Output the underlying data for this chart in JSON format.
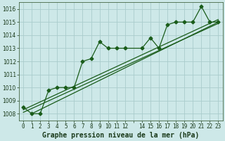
{
  "title": "Graphe pression niveau de la mer (hPa)",
  "background_color": "#cde8e8",
  "grid_color": "#b0d4d4",
  "line_color": "#1a5c1a",
  "x_values": [
    0,
    1,
    2,
    3,
    4,
    5,
    6,
    7,
    8,
    9,
    10,
    11,
    12,
    14,
    15,
    16,
    17,
    18,
    19,
    20,
    21,
    22,
    23
  ],
  "x_labels": [
    "0",
    "1",
    "2",
    "3",
    "4",
    "5",
    "6",
    "7",
    "8",
    "9",
    "101112",
    "",
    "14151617181920212223",
    "",
    "",
    "",
    "",
    "",
    "",
    "",
    "",
    "",
    ""
  ],
  "main_data": [
    1008.5,
    1008.0,
    1008.0,
    1009.8,
    1010.0,
    1010.0,
    1010.0,
    1012.0,
    1012.2,
    1013.5,
    1013.0,
    1013.0,
    1013.0,
    1013.0,
    1013.8,
    1013.0,
    1014.8,
    1015.0,
    1015.0,
    1015.0,
    1016.2,
    1015.0,
    1015.0
  ],
  "trend_lines": [
    {
      "x": [
        0,
        23
      ],
      "y": [
        1008.3,
        1015.2
      ]
    },
    {
      "x": [
        0,
        23
      ],
      "y": [
        1008.1,
        1014.9
      ]
    },
    {
      "x": [
        1,
        23
      ],
      "y": [
        1008.0,
        1015.0
      ]
    }
  ],
  "ylim": [
    1007.5,
    1016.5
  ],
  "yticks": [
    1008,
    1009,
    1010,
    1011,
    1012,
    1013,
    1014,
    1015,
    1016
  ],
  "title_fontsize": 7,
  "tick_fontsize": 5.5,
  "marker_size": 2.5,
  "line_width": 0.9
}
